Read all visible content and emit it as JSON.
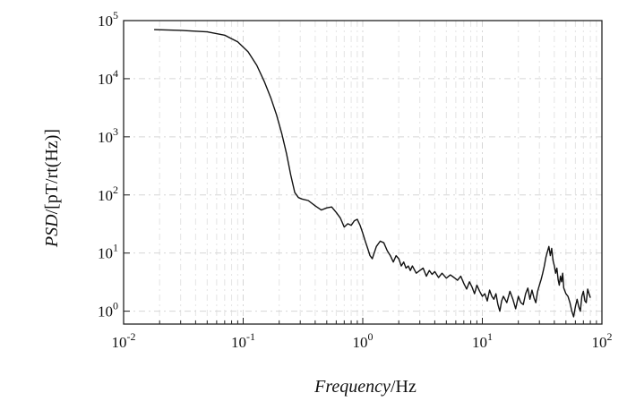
{
  "chart_data": {
    "type": "line",
    "title": "",
    "xlabel": {
      "italic": "Frequency",
      "rest": "/Hz"
    },
    "ylabel": {
      "italic": "PSD",
      "rest": "/[pT/rt(Hz)]"
    },
    "xscale": "log",
    "yscale": "log",
    "xlim": [
      0.01,
      100
    ],
    "ylim": [
      0.6,
      100000
    ],
    "grid": true,
    "x_ticks": [
      {
        "value": 0.01,
        "base": "10",
        "exp": "-2"
      },
      {
        "value": 0.1,
        "base": "10",
        "exp": "-1"
      },
      {
        "value": 1,
        "base": "10",
        "exp": "0"
      },
      {
        "value": 10,
        "base": "10",
        "exp": "1"
      },
      {
        "value": 100,
        "base": "10",
        "exp": "2"
      }
    ],
    "y_ticks": [
      {
        "value": 1,
        "base": "10",
        "exp": "0"
      },
      {
        "value": 10,
        "base": "10",
        "exp": "1"
      },
      {
        "value": 100,
        "base": "10",
        "exp": "2"
      },
      {
        "value": 1000,
        "base": "10",
        "exp": "3"
      },
      {
        "value": 10000,
        "base": "10",
        "exp": "4"
      },
      {
        "value": 100000,
        "base": "10",
        "exp": "5"
      }
    ],
    "series": [
      {
        "color": "#111111",
        "x": [
          0.018,
          0.03,
          0.05,
          0.07,
          0.09,
          0.11,
          0.13,
          0.15,
          0.17,
          0.19,
          0.21,
          0.23,
          0.25,
          0.27,
          0.29,
          0.31,
          0.35,
          0.4,
          0.45,
          0.5,
          0.55,
          0.6,
          0.65,
          0.7,
          0.75,
          0.8,
          0.85,
          0.9,
          0.95,
          1.0,
          1.05,
          1.1,
          1.15,
          1.2,
          1.3,
          1.4,
          1.5,
          1.6,
          1.7,
          1.8,
          1.9,
          2.0,
          2.1,
          2.2,
          2.3,
          2.4,
          2.5,
          2.6,
          2.8,
          3.0,
          3.2,
          3.4,
          3.6,
          3.8,
          4.0,
          4.3,
          4.6,
          5.0,
          5.4,
          5.8,
          6.2,
          6.6,
          7.0,
          7.4,
          7.8,
          8.2,
          8.6,
          9.0,
          9.5,
          10.0,
          10.5,
          11.0,
          11.5,
          12.0,
          12.5,
          13.0,
          13.5,
          14.0,
          14.5,
          15.0,
          16.0,
          17.0,
          18.0,
          19.0,
          20.0,
          21.0,
          22.0,
          23.0,
          24.0,
          25.0,
          26.0,
          27.0,
          28.0,
          29.0,
          30.0,
          31.0,
          32.0,
          33.0,
          34.0,
          35.0,
          36.0,
          37.0,
          38.0,
          39.0,
          40.0,
          41.0,
          42.0,
          43.0,
          44.0,
          45.0,
          46.0,
          47.0,
          48.0,
          50.0,
          52.0,
          54.0,
          56.0,
          58.0,
          60.0,
          62.0,
          64.0,
          66.0,
          68.0,
          70.0,
          72.0,
          74.0,
          76.0,
          78.0,
          80.0
        ],
        "y": [
          70000,
          68000,
          64000,
          56000,
          43000,
          29000,
          17000,
          9000,
          4700,
          2400,
          1150,
          520,
          220,
          110,
          90,
          85,
          80,
          65,
          55,
          60,
          62,
          50,
          40,
          28,
          32,
          30,
          36,
          38,
          30,
          22,
          16,
          12,
          9,
          8,
          13,
          16,
          15,
          11,
          9,
          7,
          9,
          8,
          6,
          7,
          5.5,
          6,
          5,
          6,
          4.5,
          5,
          5.5,
          4,
          5,
          4.3,
          4.8,
          3.8,
          4.5,
          3.7,
          4.2,
          3.8,
          3.4,
          4.0,
          3.0,
          2.4,
          3.2,
          2.6,
          2.0,
          2.8,
          2.2,
          1.8,
          2.0,
          1.5,
          2.3,
          1.8,
          1.6,
          2.0,
          1.3,
          1.0,
          1.5,
          1.8,
          1.4,
          2.2,
          1.6,
          1.1,
          1.8,
          1.4,
          1.3,
          2.0,
          2.5,
          1.6,
          2.3,
          1.7,
          1.4,
          2.2,
          2.8,
          3.5,
          4.5,
          6.0,
          8.5,
          10.5,
          13,
          9,
          12,
          7.5,
          6.0,
          4.5,
          5.5,
          3.5,
          2.8,
          4.0,
          3.2,
          4.5,
          2.5,
          2.0,
          1.8,
          1.4,
          1.0,
          0.8,
          1.2,
          1.6,
          1.2,
          1.0,
          1.8,
          2.2,
          1.5,
          1.4,
          2.4,
          2.0,
          1.7
        ]
      }
    ]
  }
}
